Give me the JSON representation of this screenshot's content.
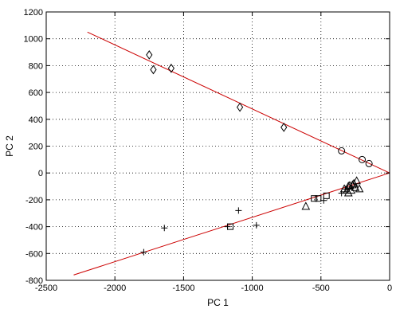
{
  "chart_data": {
    "type": "scatter",
    "title": "",
    "xlabel": "PC 1",
    "ylabel": "PC 2",
    "xlim": [
      -2500,
      0
    ],
    "ylim": [
      -800,
      1200
    ],
    "grid": true,
    "xticks": [
      -2500,
      -2000,
      -1500,
      -1000,
      -500,
      0
    ],
    "yticks": [
      -800,
      -600,
      -400,
      -200,
      0,
      200,
      400,
      600,
      800,
      1000,
      1200
    ],
    "xtick_labels": [
      "-2500",
      "-2000",
      "-1500",
      "-1000",
      "-500",
      "0"
    ],
    "ytick_labels": [
      "-800",
      "-600",
      "-400",
      "-200",
      "0",
      "200",
      "400",
      "600",
      "800",
      "1000",
      "1200"
    ],
    "marker_color": "#000000",
    "line_color": "#cc0000",
    "series": [
      {
        "marker": "diamond",
        "points": [
          [
            -1750,
            880
          ],
          [
            -1720,
            770
          ],
          [
            -1590,
            780
          ],
          [
            -1090,
            490
          ],
          [
            -770,
            340
          ]
        ]
      },
      {
        "marker": "circle",
        "points": [
          [
            -350,
            165
          ],
          [
            -200,
            100
          ],
          [
            -150,
            70
          ]
        ]
      },
      {
        "marker": "plus",
        "points": [
          [
            -1790,
            -590
          ],
          [
            -1640,
            -410
          ],
          [
            -1180,
            -400
          ],
          [
            -1100,
            -280
          ],
          [
            -970,
            -390
          ],
          [
            -480,
            -205
          ],
          [
            -350,
            -150
          ],
          [
            -320,
            -120
          ]
        ]
      },
      {
        "marker": "square",
        "points": [
          [
            -1160,
            -400
          ],
          [
            -550,
            -190
          ],
          [
            -520,
            -190
          ],
          [
            -460,
            -170
          ]
        ]
      },
      {
        "marker": "triangle",
        "points": [
          [
            -610,
            -250
          ],
          [
            -330,
            -120
          ],
          [
            -310,
            -130
          ],
          [
            -300,
            -100
          ],
          [
            -290,
            -95
          ],
          [
            -270,
            -90
          ],
          [
            -260,
            -80
          ],
          [
            -240,
            -60
          ],
          [
            -300,
            -150
          ],
          [
            -250,
            -110
          ],
          [
            -220,
            -120
          ],
          [
            -280,
            -130
          ]
        ]
      }
    ],
    "lines": [
      {
        "points": [
          [
            -2200,
            1050
          ],
          [
            0,
            0
          ]
        ]
      },
      {
        "points": [
          [
            -2300,
            -760
          ],
          [
            0,
            0
          ]
        ]
      }
    ]
  }
}
